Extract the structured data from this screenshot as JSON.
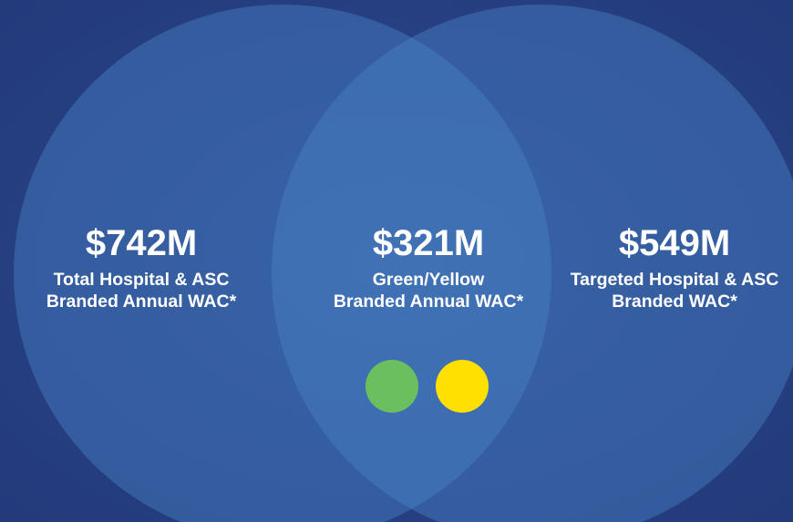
{
  "regions": [
    {
      "value": "$742M",
      "label": [
        "Total Hospital & ASC",
        "Branded Annual WAC*"
      ]
    },
    {
      "value": "$321M",
      "label": [
        "Green/Yellow",
        "Branded Annual WAC*"
      ]
    },
    {
      "value": "$549M",
      "label": [
        "Targeted Hospital & ASC",
        "Branded WAC*"
      ]
    }
  ]
}
